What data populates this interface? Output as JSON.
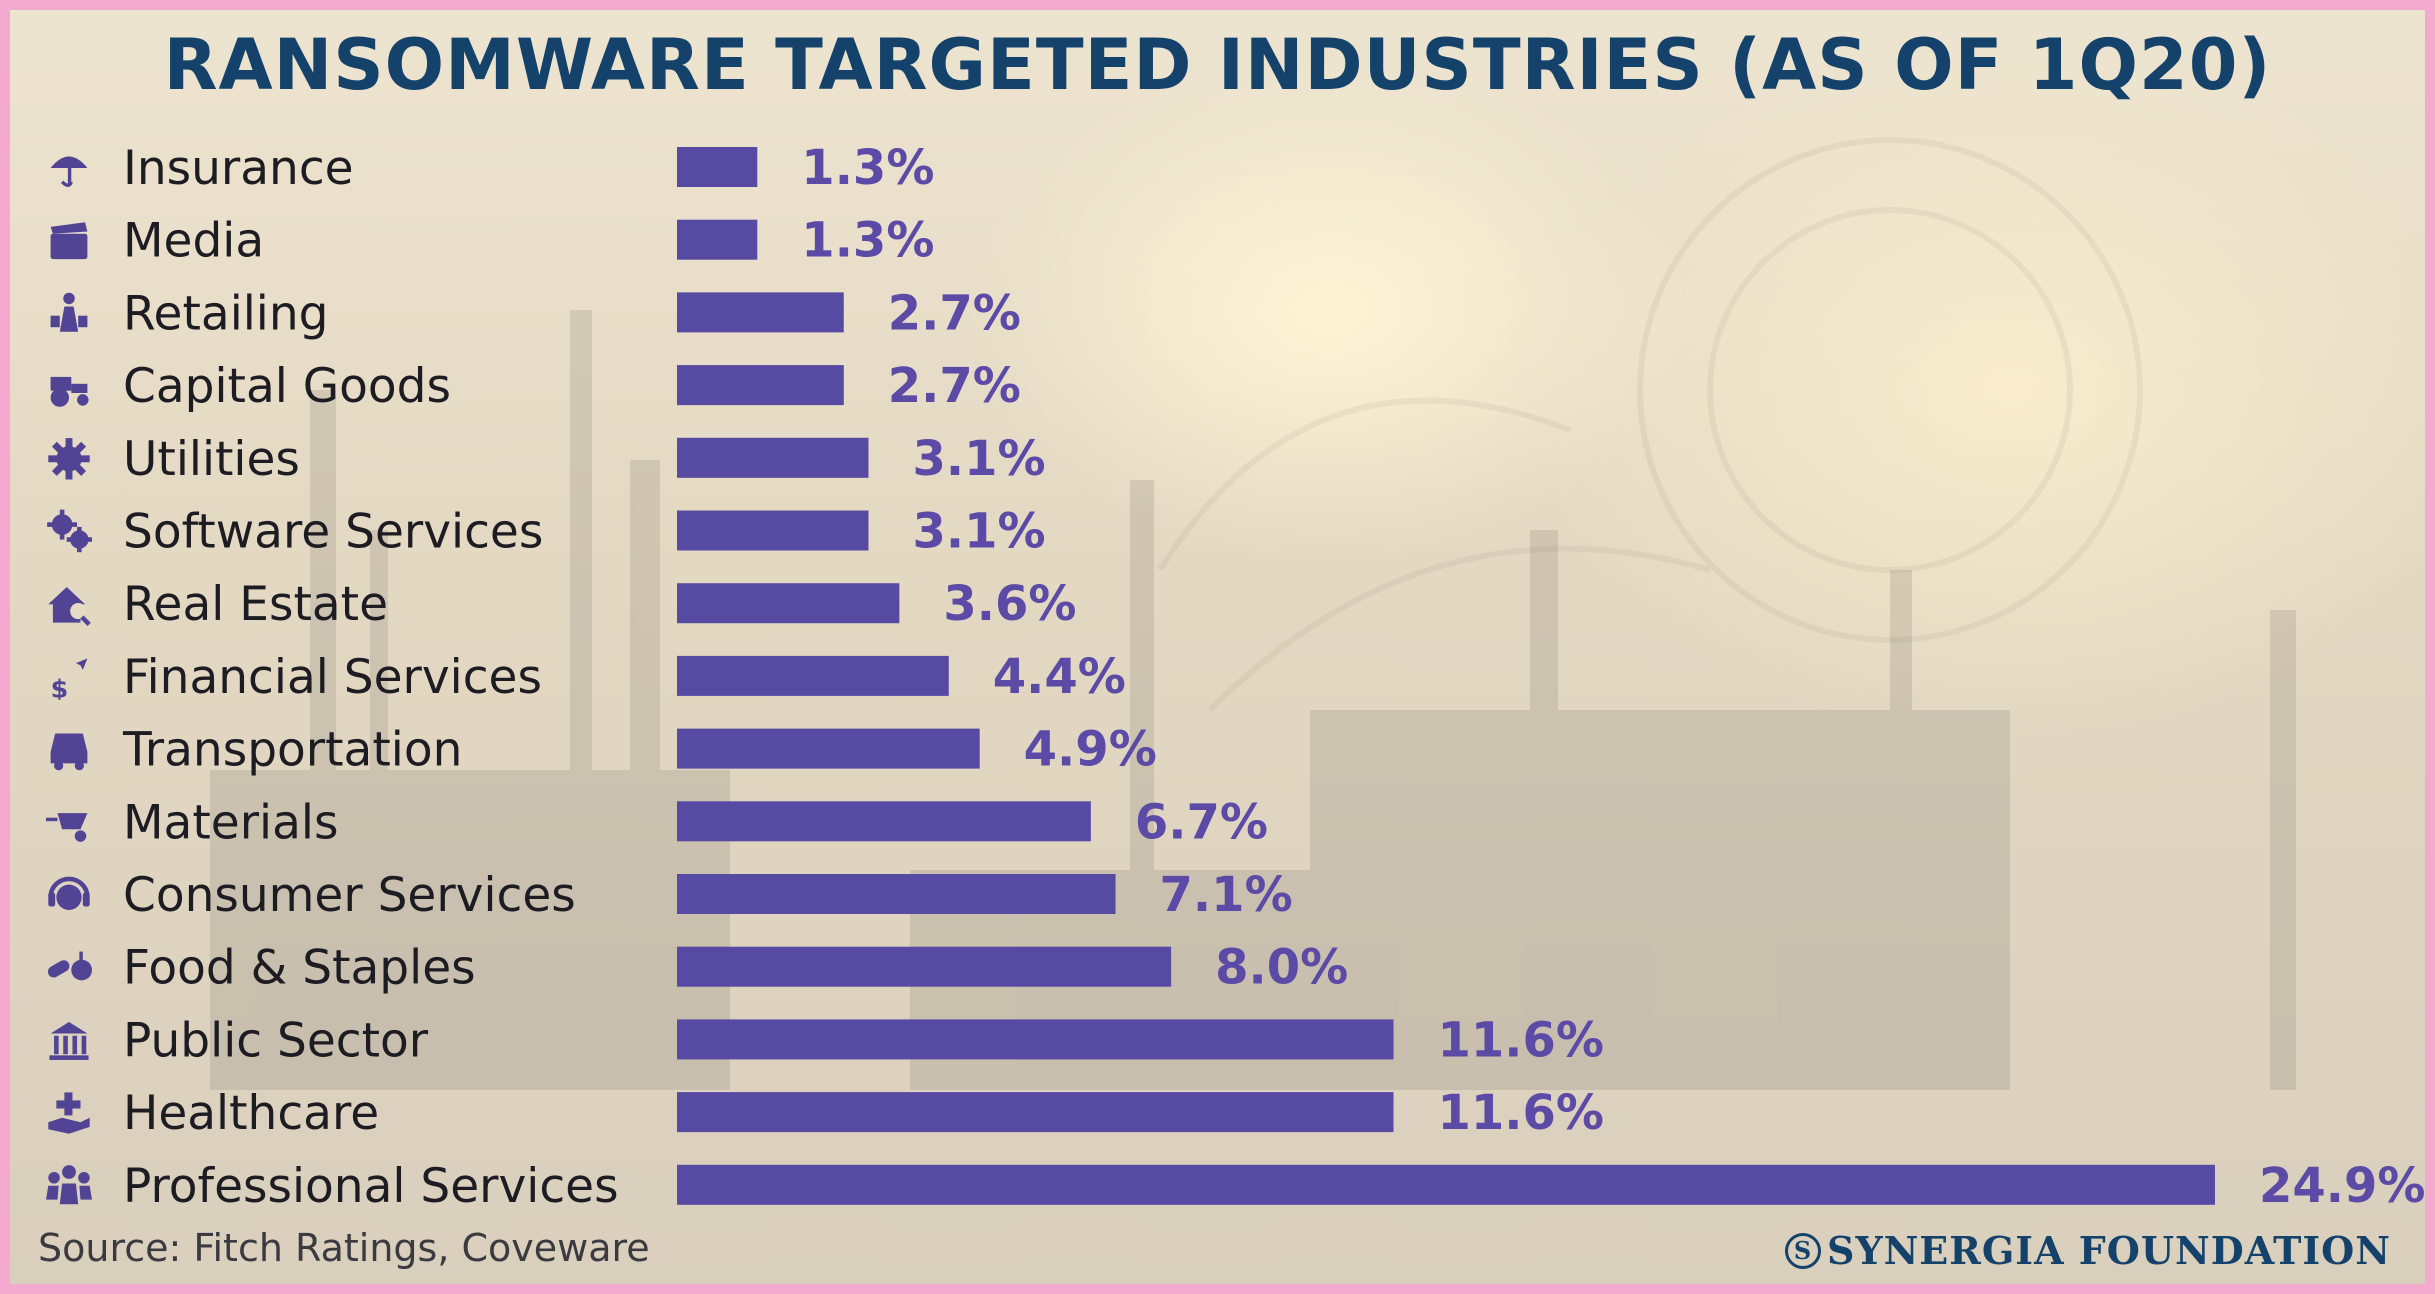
{
  "chart_data": {
    "type": "bar",
    "orientation": "horizontal",
    "title": "RANSOMWARE TARGETED INDUSTRIES (AS OF 1Q20)",
    "categories": [
      "Insurance",
      "Media",
      "Retailing",
      "Capital Goods",
      "Utilities",
      "Software Services",
      "Real Estate",
      "Financial Services",
      "Transportation",
      "Materials",
      "Consumer Services",
      "Food & Staples",
      "Public Sector",
      "Healthcare",
      "Professional Services"
    ],
    "values": [
      1.3,
      1.3,
      2.7,
      2.7,
      3.1,
      3.1,
      3.6,
      4.4,
      4.9,
      6.7,
      7.1,
      8.0,
      11.6,
      11.6,
      24.9
    ],
    "value_labels": [
      "1.3%",
      "1.3%",
      "2.7%",
      "2.7%",
      "3.1%",
      "3.1%",
      "3.6%",
      "4.4%",
      "4.9%",
      "6.7%",
      "7.1%",
      "8.0%",
      "11.6%",
      "11.6%",
      "24.9%"
    ],
    "icons": [
      "umbrella-icon",
      "clapperboard-icon",
      "shopper-icon",
      "tractor-icon",
      "gear-icon",
      "gears-icon",
      "house-search-icon",
      "money-growth-icon",
      "car-icon",
      "wheelbarrow-icon",
      "headset-icon",
      "food-icon",
      "government-building-icon",
      "hand-medical-icon",
      "people-group-icon"
    ],
    "xlim": [
      0,
      25
    ],
    "grid": false,
    "legend": "none",
    "bar_color": "#564aa3",
    "label_color": "#5b4aa6"
  },
  "source": "Source: Fitch Ratings, Coveware",
  "brand": "SYNERGIA FOUNDATION",
  "brand_icon": "S",
  "colors": {
    "title": "#14426b",
    "border": "#f4a9cf"
  }
}
